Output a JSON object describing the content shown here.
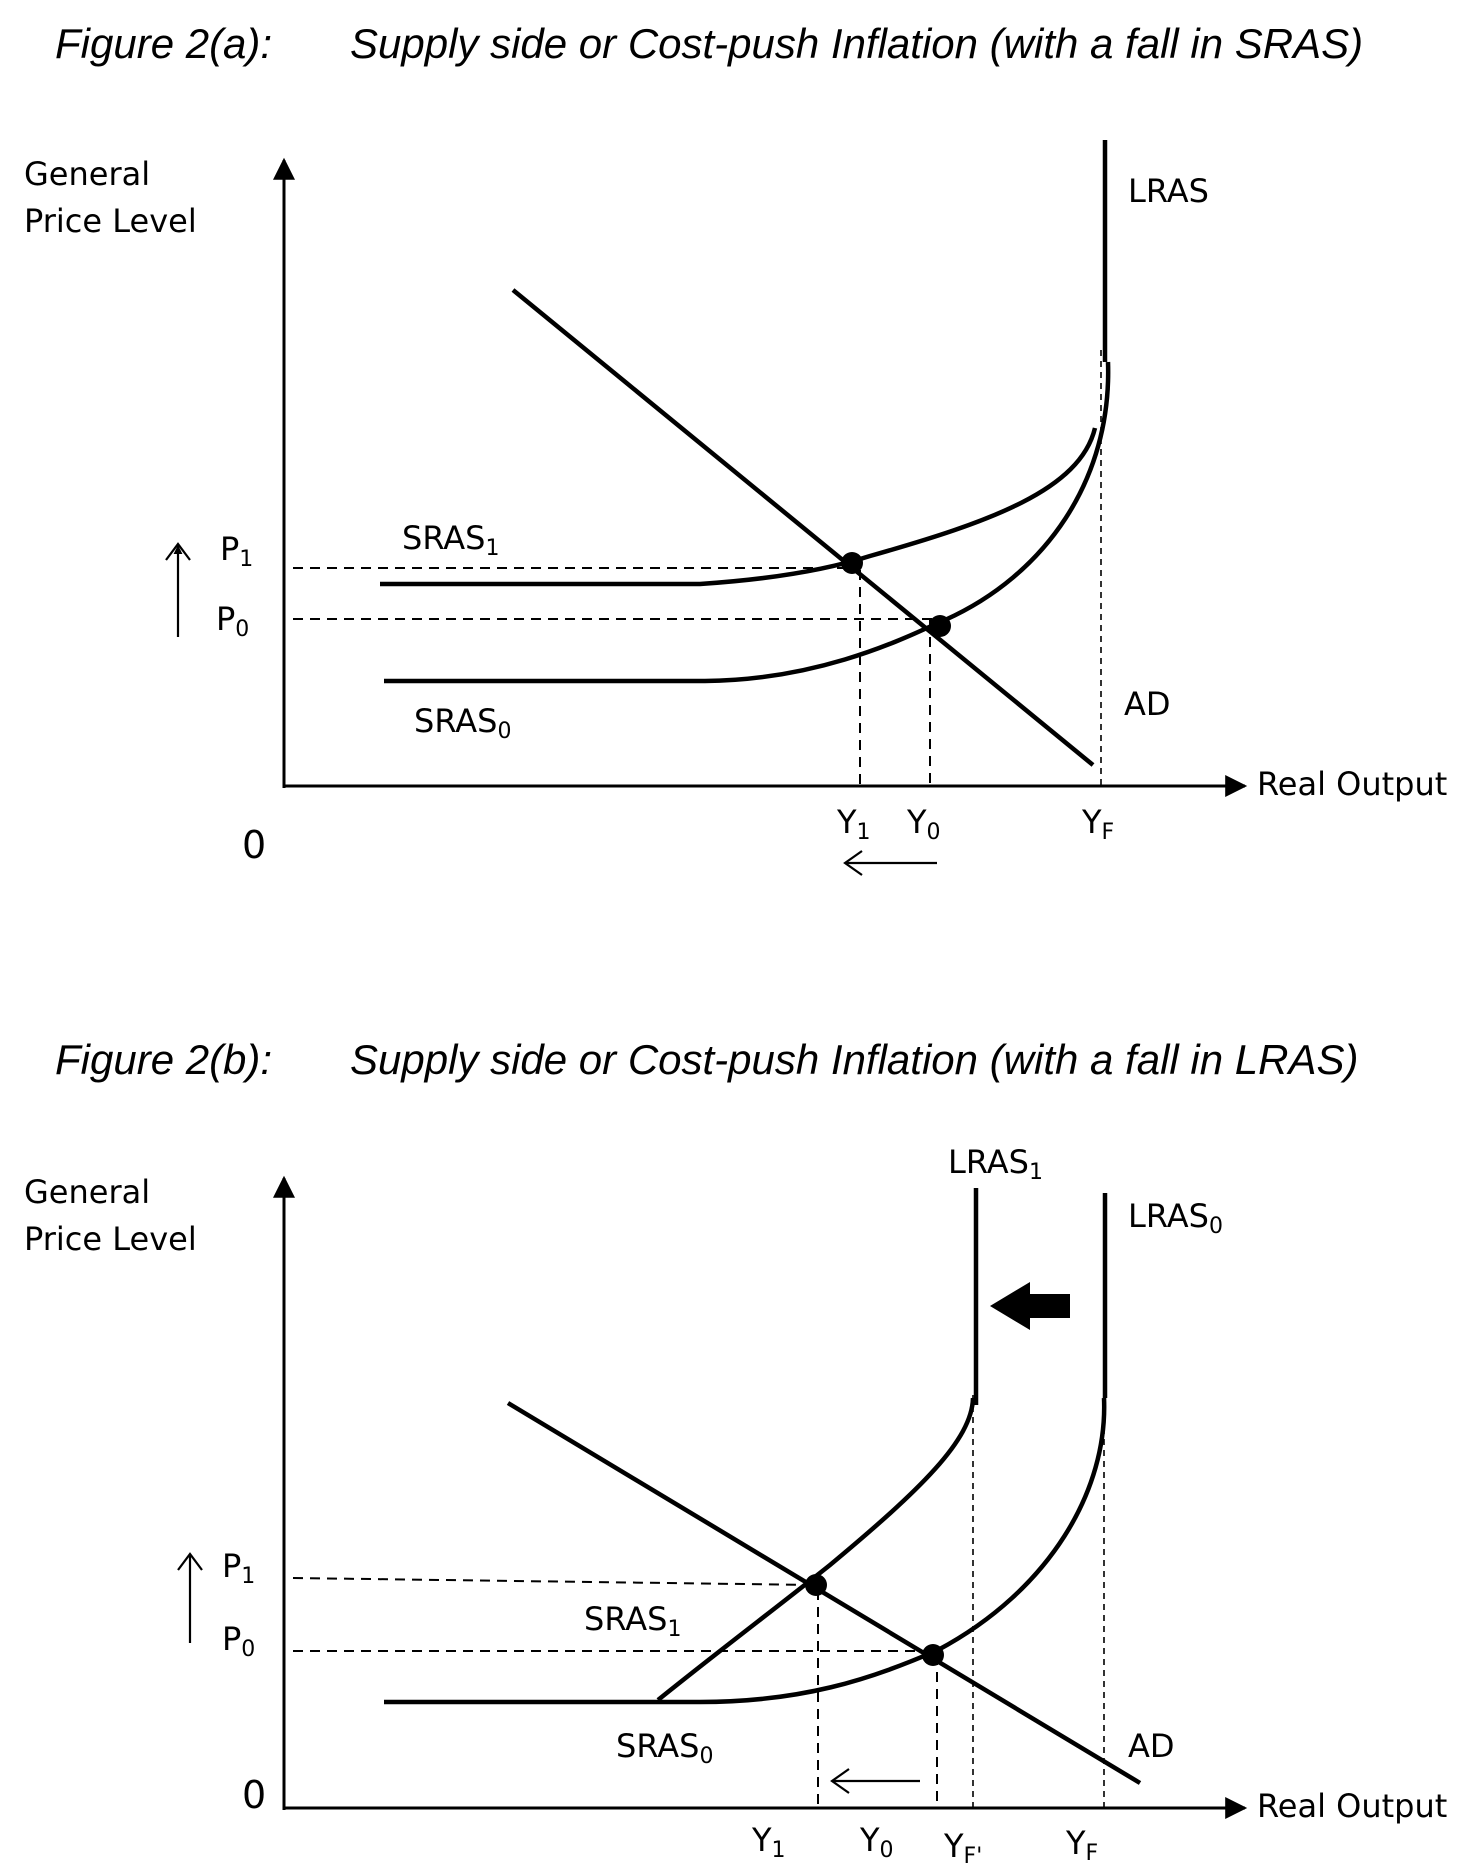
{
  "figures": [
    {
      "id": "a",
      "figure_label": "Figure 2(a):",
      "title": "Supply side or Cost-push Inflation (with a fall in SRAS)",
      "y_axis_label_line1": "General",
      "y_axis_label_line2": "Price Level",
      "x_axis_label": "Real Output",
      "origin_label": "0",
      "curves": {
        "lras": {
          "main": "LRAS",
          "sub": ""
        },
        "ad": {
          "main": "AD",
          "sub": ""
        },
        "sras_new": {
          "main": "SRAS",
          "sub": "1"
        },
        "sras_old": {
          "main": "SRAS",
          "sub": "0"
        }
      },
      "price_levels": {
        "p1": {
          "main": "P",
          "sub": "1"
        },
        "p0": {
          "main": "P",
          "sub": "0"
        }
      },
      "outputs": {
        "y1": {
          "main": "Y",
          "sub": "1"
        },
        "y0": {
          "main": "Y",
          "sub": "0"
        },
        "yf": {
          "main": "Y",
          "sub": "F"
        }
      },
      "price_arrow": "up",
      "output_arrow": "left"
    },
    {
      "id": "b",
      "figure_label": "Figure 2(b):",
      "title": "Supply side or Cost-push Inflation (with a fall in LRAS)",
      "y_axis_label_line1": "General",
      "y_axis_label_line2": "Price Level",
      "x_axis_label": "Real Output",
      "origin_label": "0",
      "curves": {
        "lras_new": {
          "main": "LRAS",
          "sub": "1"
        },
        "lras_old": {
          "main": "LRAS",
          "sub": "0"
        },
        "ad": {
          "main": "AD",
          "sub": ""
        },
        "sras_new": {
          "main": "SRAS",
          "sub": "1"
        },
        "sras_old": {
          "main": "SRAS",
          "sub": "0"
        }
      },
      "price_levels": {
        "p1": {
          "main": "P",
          "sub": "1"
        },
        "p0": {
          "main": "P",
          "sub": "0"
        }
      },
      "outputs": {
        "y1": {
          "main": "Y",
          "sub": "1"
        },
        "y0": {
          "main": "Y",
          "sub": "0"
        },
        "yf_new": {
          "main": "Y",
          "sub": "F'"
        },
        "yf": {
          "main": "Y",
          "sub": "F"
        }
      },
      "price_arrow": "up",
      "output_arrow": "left",
      "lras_shift_arrow": "left"
    }
  ]
}
